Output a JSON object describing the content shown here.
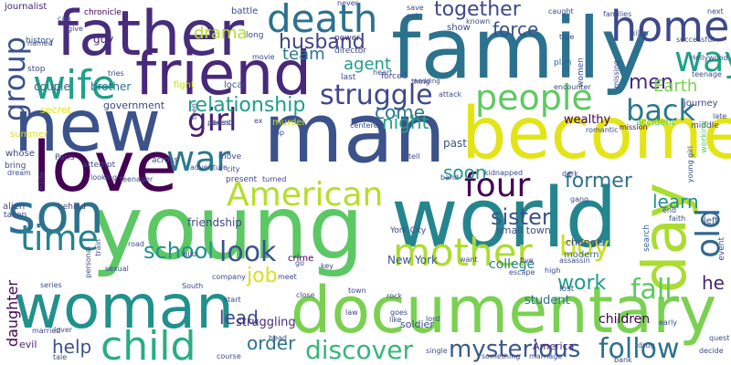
{
  "words": [
    {
      "text": "young",
      "color": "#5cc863"
    },
    {
      "text": "family",
      "color": "#2c728e"
    },
    {
      "text": "man",
      "color": "#3b528b"
    },
    {
      "text": "world",
      "color": "#25858e"
    },
    {
      "text": "become",
      "color": "#e3e418"
    },
    {
      "text": "new",
      "color": "#3b528b"
    },
    {
      "text": "father",
      "color": "#472d7b"
    },
    {
      "text": "love",
      "color": "#440154"
    },
    {
      "text": "woman",
      "color": "#21918c"
    },
    {
      "text": "documentary",
      "color": "#7ad151"
    },
    {
      "text": "son",
      "color": "#2c728e"
    },
    {
      "text": "friend",
      "color": "#482878"
    },
    {
      "text": "day",
      "color": "#aadc32"
    },
    {
      "text": "death",
      "color": "#2c728e"
    },
    {
      "text": "home",
      "color": "#3e4989"
    },
    {
      "text": "child",
      "color": "#28ae80"
    },
    {
      "text": "mother",
      "color": "#addc30"
    },
    {
      "text": "wife",
      "color": "#1fa088"
    },
    {
      "text": "people",
      "color": "#5ec962"
    },
    {
      "text": "American",
      "color": "#b5de2b"
    },
    {
      "text": "war",
      "color": "#2a788e"
    },
    {
      "text": "time",
      "color": "#26828e"
    },
    {
      "text": "group",
      "color": "#3b528b"
    },
    {
      "text": "old",
      "color": "#31688e"
    },
    {
      "text": "way",
      "color": "#1fa188"
    },
    {
      "text": "struggle",
      "color": "#3e4989"
    },
    {
      "text": "four",
      "color": "#440154"
    },
    {
      "text": "girl",
      "color": "#481f70"
    },
    {
      "text": "back",
      "color": "#2a788e"
    },
    {
      "text": "look",
      "color": "#3b528b"
    },
    {
      "text": "follow",
      "color": "#2c728e"
    },
    {
      "text": "discover",
      "color": "#35b779"
    },
    {
      "text": "fall",
      "color": "#5ec962"
    },
    {
      "text": "boy",
      "color": "#c8e020"
    },
    {
      "text": "mysterious",
      "color": "#38598c"
    },
    {
      "text": "school",
      "color": "#21918c"
    },
    {
      "text": "sister",
      "color": "#3b528b"
    },
    {
      "text": "relationship",
      "color": "#1f9e89"
    },
    {
      "text": "husband",
      "color": "#414487"
    },
    {
      "text": "together",
      "color": "#3e4989"
    },
    {
      "text": "former",
      "color": "#2c728e"
    },
    {
      "text": "work",
      "color": "#1f9a8a"
    },
    {
      "text": "learn",
      "color": "#21918c"
    },
    {
      "text": "men",
      "color": "#472d7b"
    },
    {
      "text": "Earth",
      "color": "#7ad151"
    },
    {
      "text": "come",
      "color": "#2a788e"
    },
    {
      "text": "night",
      "color": "#20a386"
    },
    {
      "text": "force",
      "color": "#3b528b"
    },
    {
      "text": "team",
      "color": "#2a788e"
    },
    {
      "text": "agent",
      "color": "#1f9e89"
    },
    {
      "text": "drama",
      "color": "#b5de2b"
    },
    {
      "text": "job",
      "color": "#d8e219"
    },
    {
      "text": "lead",
      "color": "#3e4989"
    },
    {
      "text": "help",
      "color": "#3b528b"
    },
    {
      "text": "order",
      "color": "#2c728e"
    },
    {
      "text": "soon",
      "color": "#1f9a8a"
    },
    {
      "text": "he",
      "color": "#482878"
    },
    {
      "text": "daughter",
      "color": "#440154"
    },
    {
      "text": "New York",
      "color": "#3b528b"
    },
    {
      "text": "college",
      "color": "#26828e"
    },
    {
      "text": "friendship",
      "color": "#3e4989"
    },
    {
      "text": "student",
      "color": "#2c728e"
    },
    {
      "text": "children",
      "color": "#440154"
    },
    {
      "text": "struggling",
      "color": "#472d7b"
    },
    {
      "text": "guy",
      "color": "#482878"
    },
    {
      "text": "brother",
      "color": "#2c728e"
    },
    {
      "text": "government",
      "color": "#3e4989"
    },
    {
      "text": "couple",
      "color": "#31688e"
    },
    {
      "text": "wealthy",
      "color": "#440154"
    },
    {
      "text": "past",
      "color": "#3b528b"
    },
    {
      "text": "soldier",
      "color": "#3e4989"
    },
    {
      "text": "small town",
      "color": "#3b528b"
    },
    {
      "text": "change",
      "color": "#3e4989"
    },
    {
      "text": "local",
      "color": "#3b528b"
    },
    {
      "text": "fight",
      "color": "#c8e020"
    },
    {
      "text": "murder",
      "color": "#c8e020"
    },
    {
      "text": "secret",
      "color": "#e3e418"
    },
    {
      "text": "summer",
      "color": "#dde318"
    },
    {
      "text": "alien",
      "color": "#3e4989"
    },
    {
      "text": "evil",
      "color": "#482878"
    },
    {
      "text": "America",
      "color": "#472d7b"
    },
    {
      "text": "modern",
      "color": "#31688e"
    },
    {
      "text": "journey",
      "color": "#3e4989"
    },
    {
      "text": "left",
      "color": "#3b528b"
    },
    {
      "text": "crime",
      "color": "#440154"
    },
    {
      "text": "accident",
      "color": "#5ec962"
    },
    {
      "text": "journalist",
      "color": "#482878"
    },
    {
      "text": "chronicle",
      "color": "#440154"
    },
    {
      "text": "battle",
      "color": "#3e4989"
    },
    {
      "text": "history",
      "color": "#3b528b"
    },
    {
      "text": "whose",
      "color": "#3e4989"
    },
    {
      "text": "behind",
      "color": "#3e4989"
    },
    {
      "text": "lost",
      "color": "#38598c"
    },
    {
      "text": "power",
      "color": "#472d7b"
    },
    {
      "text": "show",
      "color": "#3e4989"
    },
    {
      "text": "plan",
      "color": "#31688e"
    },
    {
      "text": "women",
      "color": "#3b528b"
    },
    {
      "text": "middle",
      "color": "#3e4989"
    },
    {
      "text": "search",
      "color": "#31688e"
    },
    {
      "text": "working",
      "color": "#5ec962"
    },
    {
      "text": "event",
      "color": "#3e4989"
    },
    {
      "text": "attempt",
      "color": "#3e4989"
    },
    {
      "text": "across",
      "color": "#3e4989"
    },
    {
      "text": "move",
      "color": "#3e4989"
    },
    {
      "text": "present",
      "color": "#3e4989"
    },
    {
      "text": "last",
      "color": "#3e4989"
    },
    {
      "text": "forced",
      "color": "#3e4989"
    },
    {
      "text": "director",
      "color": "#3e4989"
    },
    {
      "text": "mission",
      "color": "#440154"
    },
    {
      "text": "Paris",
      "color": "#3e4989"
    },
    {
      "text": "bring",
      "color": "#3e4989"
    },
    {
      "text": "named",
      "color": "#3e4989"
    },
    {
      "text": "stop",
      "color": "#3e4989"
    },
    {
      "text": "taken",
      "color": "#3e4989"
    },
    {
      "text": "long",
      "color": "#3e4989"
    },
    {
      "text": "movie",
      "color": "#3e4989"
    },
    {
      "text": "tries",
      "color": "#3e4989"
    },
    {
      "text": "romantic",
      "color": "#3e4989"
    },
    {
      "text": "teenager",
      "color": "#3e4989"
    },
    {
      "text": "turned",
      "color": "#3e4989"
    },
    {
      "text": "looking",
      "color": "#3e4989"
    },
    {
      "text": "road",
      "color": "#3e4989"
    },
    {
      "text": "company",
      "color": "#3e4989"
    },
    {
      "text": "meet",
      "color": "#3e4989"
    },
    {
      "text": "assassin",
      "color": "#3e4989"
    },
    {
      "text": "five",
      "color": "#3e4989"
    },
    {
      "text": "high",
      "color": "#3e4989"
    },
    {
      "text": "escape",
      "color": "#3e4989"
    },
    {
      "text": "town",
      "color": "#3e4989"
    },
    {
      "text": "series",
      "color": "#3e4989"
    },
    {
      "text": "start",
      "color": "#3e4989"
    },
    {
      "text": "go",
      "color": "#3e4989"
    },
    {
      "text": "key",
      "color": "#3e4989"
    },
    {
      "text": "drug",
      "color": "#3e4989"
    },
    {
      "text": "early",
      "color": "#3e4989"
    },
    {
      "text": "decide",
      "color": "#3e4989"
    },
    {
      "text": "quest",
      "color": "#3e4989"
    },
    {
      "text": "course",
      "color": "#3e4989"
    },
    {
      "text": "married",
      "color": "#3e4989"
    },
    {
      "text": "single",
      "color": "#3e4989"
    },
    {
      "text": "something",
      "color": "#3e4989"
    },
    {
      "text": "marriage",
      "color": "#3e4989"
    },
    {
      "text": "bank",
      "color": "#3e4989"
    },
    {
      "text": "like",
      "color": "#3e4989"
    },
    {
      "text": "lord",
      "color": "#3e4989"
    },
    {
      "text": "never",
      "color": "#3e4989"
    },
    {
      "text": "save",
      "color": "#3e4989"
    },
    {
      "text": "put",
      "color": "#3e4989"
    },
    {
      "text": "caught",
      "color": "#3e4989"
    },
    {
      "text": "families",
      "color": "#3e4989"
    },
    {
      "text": "next",
      "color": "#3e4989"
    },
    {
      "text": "killer",
      "color": "#3e4989"
    },
    {
      "text": "true",
      "color": "#3e4989"
    },
    {
      "text": "successful",
      "color": "#3e4989"
    },
    {
      "text": "Hollywood",
      "color": "#3e4989"
    },
    {
      "text": "teenage",
      "color": "#3e4989"
    },
    {
      "text": "missing",
      "color": "#3e4989"
    },
    {
      "text": "encounter",
      "color": "#3e4989"
    },
    {
      "text": "give",
      "color": "#3e4989"
    },
    {
      "text": "heart",
      "color": "#3e4989"
    },
    {
      "text": "thing",
      "color": "#3e4989"
    },
    {
      "text": "parent",
      "color": "#3e4989"
    },
    {
      "text": "ex",
      "color": "#3e4989"
    },
    {
      "text": "centered",
      "color": "#3e4989"
    },
    {
      "text": "teen",
      "color": "#3e4989"
    },
    {
      "text": "dream",
      "color": "#3e4989"
    },
    {
      "text": "made",
      "color": "#3e4989"
    },
    {
      "text": "adventure",
      "color": "#3e4989"
    },
    {
      "text": "city",
      "color": "#3e4989"
    },
    {
      "text": "kidnapped",
      "color": "#3e4989"
    },
    {
      "text": "dark",
      "color": "#3e4989"
    },
    {
      "text": "band",
      "color": "#3e4989"
    },
    {
      "text": "gang",
      "color": "#3e4989"
    },
    {
      "text": "young girl",
      "color": "#3e4989"
    },
    {
      "text": "late",
      "color": "#3e4989"
    },
    {
      "text": "faith",
      "color": "#3e4989"
    },
    {
      "text": "tell",
      "color": "#3e4989"
    },
    {
      "text": "want",
      "color": "#3e4989"
    },
    {
      "text": "rock",
      "color": "#3e4989"
    },
    {
      "text": "goes",
      "color": "#3e4989"
    },
    {
      "text": "wedding",
      "color": "#3e4989"
    },
    {
      "text": "close",
      "color": "#3e4989"
    },
    {
      "text": "law",
      "color": "#3e4989"
    },
    {
      "text": "head",
      "color": "#3e4989"
    },
    {
      "text": "lover",
      "color": "#3e4989"
    },
    {
      "text": "tale",
      "color": "#3e4989"
    },
    {
      "text": "personal",
      "color": "#3e4989"
    },
    {
      "text": "train",
      "color": "#3e4989"
    },
    {
      "text": "sexual",
      "color": "#3e4989"
    },
    {
      "text": "South",
      "color": "#3e4989"
    },
    {
      "text": "wild",
      "color": "#3e4989"
    },
    {
      "text": "attack",
      "color": "#3e4989"
    },
    {
      "text": "can",
      "color": "#3e4989"
    },
    {
      "text": "known",
      "color": "#3e4989"
    },
    {
      "text": "York City",
      "color": "#3e4989"
    },
    {
      "text": "boss",
      "color": "#3e4989"
    },
    {
      "text": "top",
      "color": "#3e4989"
    },
    {
      "text": "end",
      "color": "#3e4989"
    }
  ]
}
